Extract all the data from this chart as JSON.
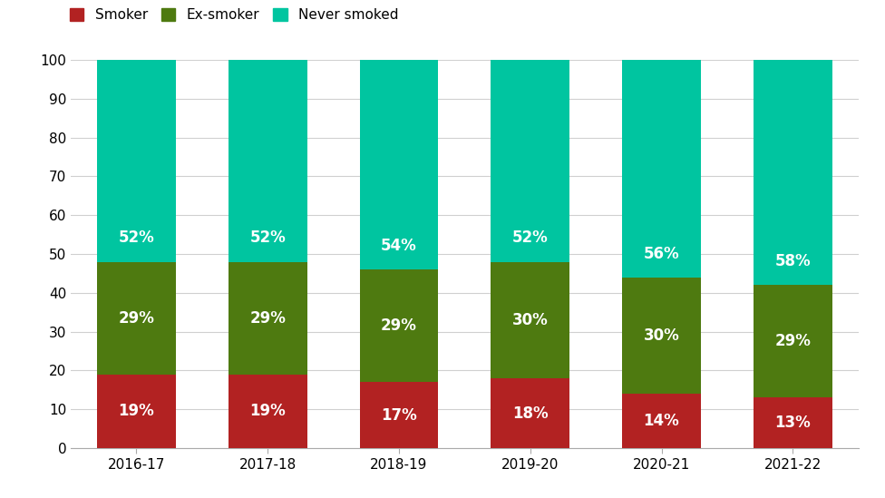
{
  "categories": [
    "2016-17",
    "2017-18",
    "2018-19",
    "2019-20",
    "2020-21",
    "2021-22"
  ],
  "smoker": [
    19,
    19,
    17,
    18,
    14,
    13
  ],
  "ex_smoker": [
    29,
    29,
    29,
    30,
    30,
    29
  ],
  "never_smoked": [
    52,
    52,
    54,
    52,
    56,
    58
  ],
  "smoker_color": "#b22222",
  "ex_smoker_color": "#4e7a10",
  "never_smoked_color": "#00c5a0",
  "label_smoker": "Smoker",
  "label_ex_smoker": "Ex-smoker",
  "label_never_smoked": "Never smoked",
  "ylim": [
    0,
    100
  ],
  "yticks": [
    0,
    10,
    20,
    30,
    40,
    50,
    60,
    70,
    80,
    90,
    100
  ],
  "bar_width": 0.6,
  "text_color_white": "#ffffff",
  "background_color": "#ffffff",
  "grid_color": "#d0d0d0",
  "label_fontsize": 12,
  "tick_fontsize": 11,
  "legend_fontsize": 11
}
